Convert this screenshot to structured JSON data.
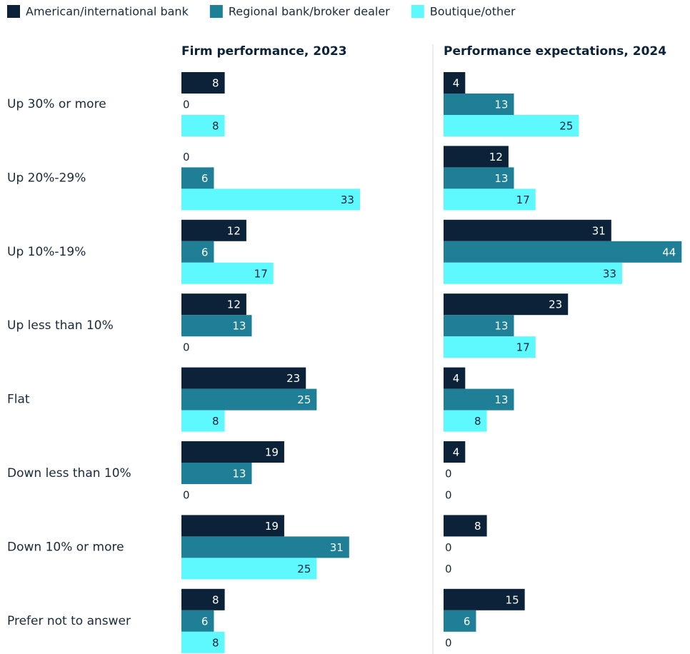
{
  "chart_data": [
    {
      "type": "bar",
      "orientation": "horizontal",
      "title": "Firm performance, 2023",
      "categories": [
        "Up 30% or more",
        "Up 20%-29%",
        "Up 10%-19%",
        "Up less than 10%",
        "Flat",
        "Down less than 10%",
        "Down 10% or more",
        "Prefer not to answer"
      ],
      "series": [
        {
          "name": "American/international bank",
          "color": "#0b2239",
          "values": [
            8,
            0,
            12,
            12,
            23,
            19,
            19,
            8
          ]
        },
        {
          "name": "Regional bank/broker dealer",
          "color": "#1e7f96",
          "values": [
            0,
            6,
            6,
            13,
            25,
            13,
            31,
            6
          ]
        },
        {
          "name": "Boutique/other",
          "color": "#5ef8ff",
          "values": [
            8,
            33,
            17,
            0,
            8,
            0,
            25,
            8
          ]
        }
      ]
    },
    {
      "type": "bar",
      "orientation": "horizontal",
      "title": "Performance expectations, 2024",
      "series": [
        {
          "values": [
            4,
            12,
            31,
            23,
            4,
            4,
            8,
            15
          ]
        },
        {
          "values": [
            13,
            13,
            44,
            13,
            13,
            0,
            0,
            6
          ]
        },
        {
          "values": [
            25,
            17,
            33,
            17,
            8,
            0,
            0,
            0
          ]
        }
      ]
    }
  ]
}
